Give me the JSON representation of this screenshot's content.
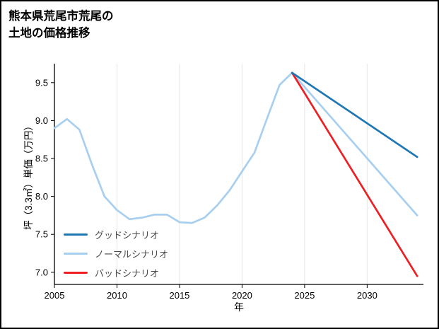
{
  "title": {
    "line1": "熊本県荒尾市荒尾の",
    "line2": "土地の価格推移"
  },
  "axes": {
    "x_label": "年",
    "y_label": "坪（3.3㎡）単価（万円）"
  },
  "legend": {
    "items": [
      {
        "label": "グッドシナリオ",
        "color": "#1f77b4"
      },
      {
        "label": "ノーマルシナリオ",
        "color": "#a9cfef"
      },
      {
        "label": "バッドシナリオ",
        "color": "#ed2024"
      }
    ]
  },
  "chart_data": {
    "type": "line",
    "title": "熊本県荒尾市荒尾の土地の価格推移",
    "xlabel": "年",
    "ylabel": "坪（3.3㎡）単価（万円）",
    "xlim": [
      2005,
      2034.5
    ],
    "ylim": [
      6.84,
      9.75
    ],
    "x_ticks": [
      2005,
      2010,
      2015,
      2020,
      2025,
      2030
    ],
    "y_ticks": [
      7.0,
      7.5,
      8.0,
      8.5,
      9.0,
      9.5
    ],
    "grid": "vertical-only",
    "legend_position": "lower-left-inside",
    "series": [
      {
        "name": "ノーマルシナリオ",
        "color": "#a9cfef",
        "x": [
          2005,
          2006,
          2007,
          2008,
          2009,
          2010,
          2011,
          2012,
          2013,
          2014,
          2015,
          2016,
          2017,
          2018,
          2019,
          2020,
          2021,
          2022,
          2023,
          2024,
          2034
        ],
        "y": [
          8.9,
          9.02,
          8.88,
          8.42,
          8.0,
          7.82,
          7.7,
          7.72,
          7.76,
          7.76,
          7.66,
          7.65,
          7.72,
          7.88,
          8.08,
          8.33,
          8.58,
          9.03,
          9.47,
          9.63,
          7.75
        ]
      },
      {
        "name": "バッドシナリオ",
        "color": "#ed2024",
        "x": [
          2024,
          2034
        ],
        "y": [
          9.63,
          6.95
        ]
      },
      {
        "name": "グッドシナリオ",
        "color": "#1f77b4",
        "x": [
          2024,
          2034
        ],
        "y": [
          9.63,
          8.52
        ]
      }
    ]
  }
}
